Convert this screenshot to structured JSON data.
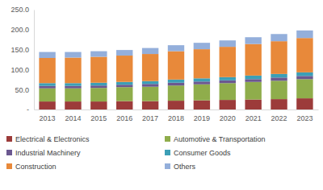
{
  "chart_data": {
    "type": "bar",
    "stacked": true,
    "grid": false,
    "legend": "bottom",
    "categories": [
      "2013",
      "2014",
      "2015",
      "2016",
      "2017",
      "2018",
      "2019",
      "2020",
      "2021",
      "2022",
      "2023"
    ],
    "series": [
      {
        "name": "Electrical & Electronics",
        "color": "#9c3b3a",
        "values": [
          20,
          20,
          20,
          21,
          21,
          22,
          23,
          24,
          25,
          26,
          28
        ]
      },
      {
        "name": "Automotive & Transportation",
        "color": "#8fad4b",
        "values": [
          33,
          33,
          34,
          35,
          36,
          38,
          40,
          42,
          44,
          46,
          48
        ]
      },
      {
        "name": "Industrial Machinery",
        "color": "#6b5890",
        "values": [
          6,
          6,
          6,
          6,
          7,
          7,
          7,
          7,
          7,
          8,
          8
        ]
      },
      {
        "name": "Consumer Goods",
        "color": "#3c9fb6",
        "values": [
          7,
          7,
          7,
          7,
          7,
          8,
          8,
          8,
          9,
          9,
          9
        ]
      },
      {
        "name": "Construction",
        "color": "#e8893a",
        "values": [
          63,
          64,
          65,
          66,
          68,
          71,
          73,
          76,
          79,
          82,
          86
        ]
      },
      {
        "name": "Others",
        "color": "#94afdb",
        "values": [
          15,
          14,
          14,
          14,
          15,
          15,
          16,
          16,
          17,
          18,
          19
        ]
      }
    ],
    "ylim": [
      0,
      250
    ],
    "yticks": [
      {
        "value": 0,
        "label": "-"
      },
      {
        "value": 50,
        "label": "50.0"
      },
      {
        "value": 100,
        "label": "100.0"
      },
      {
        "value": 150,
        "label": "150.0"
      },
      {
        "value": 200,
        "label": "200.0"
      },
      {
        "value": 250,
        "label": "250.0"
      }
    ]
  }
}
